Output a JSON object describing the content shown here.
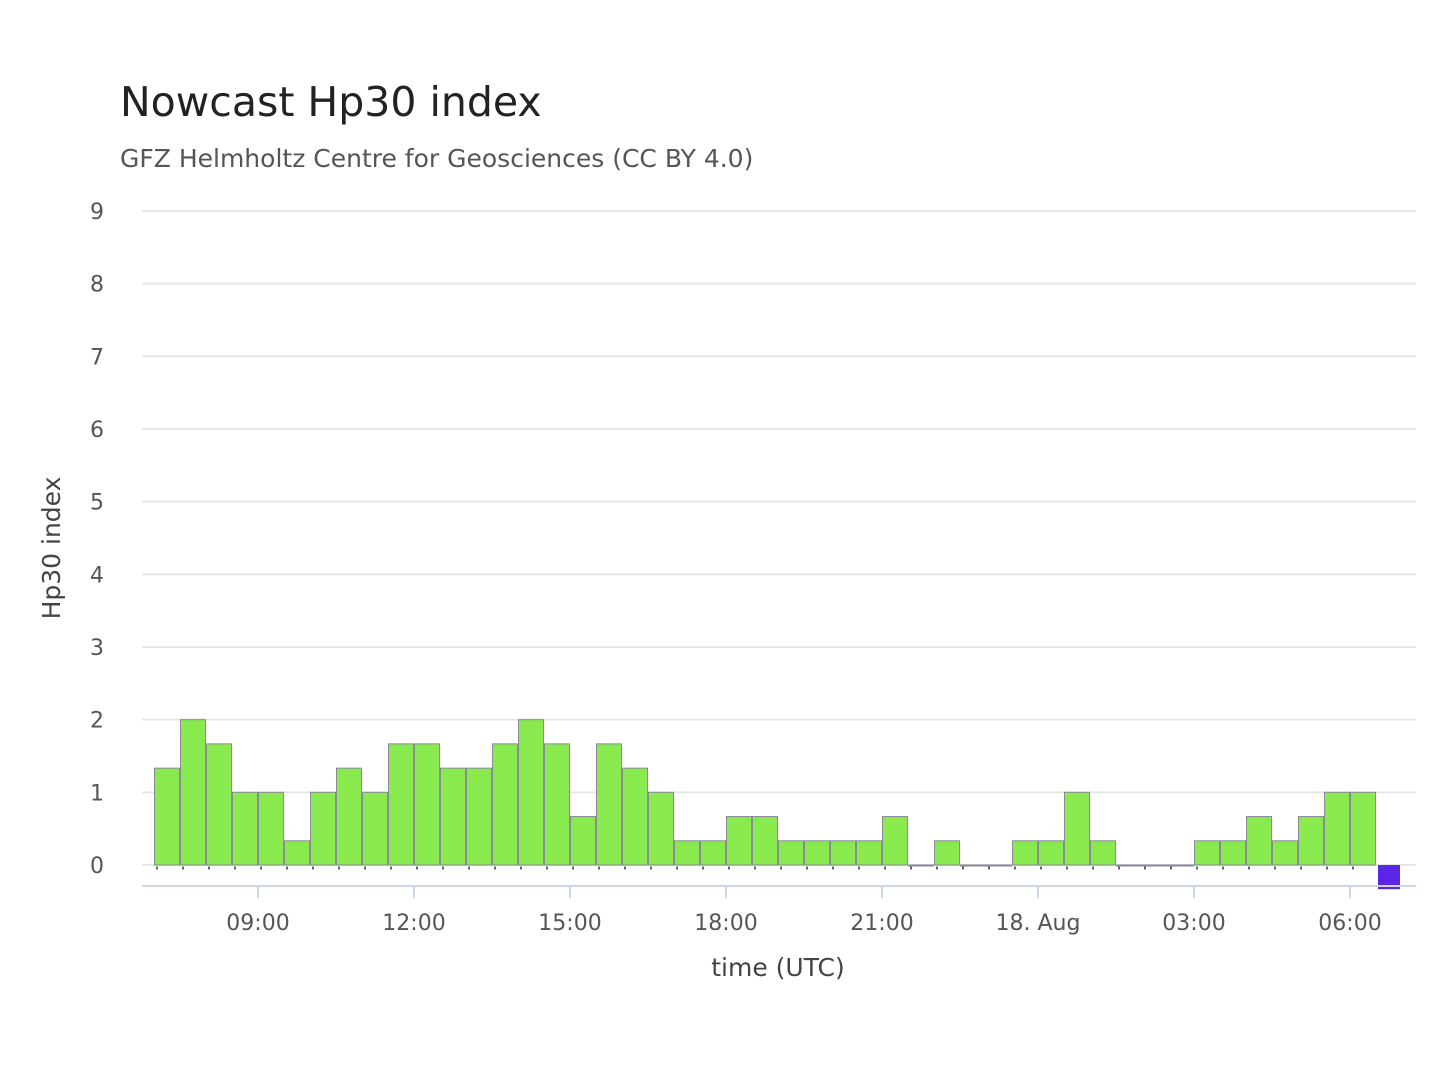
{
  "chart_data": {
    "type": "bar",
    "title": "Nowcast Hp30 index",
    "subtitle": "GFZ Helmholtz Centre for Geosciences (CC BY 4.0)",
    "xlabel": "time (UTC)",
    "ylabel": "Hp30 index",
    "ylim": [
      0,
      9
    ],
    "yticks": [
      "0",
      "1",
      "2",
      "3",
      "4",
      "5",
      "6",
      "7",
      "8",
      "9"
    ],
    "grid": true,
    "x_start": "2025-08-17 07:00",
    "bar_width_hours": 0.5,
    "xticks": [
      {
        "label": "09:00",
        "hours": 2
      },
      {
        "label": "12:00",
        "hours": 5
      },
      {
        "label": "15:00",
        "hours": 8
      },
      {
        "label": "18:00",
        "hours": 11
      },
      {
        "label": "21:00",
        "hours": 14
      },
      {
        "label": "18. Aug",
        "hours": 17
      },
      {
        "label": "03:00",
        "hours": 20
      },
      {
        "label": "06:00",
        "hours": 23
      }
    ],
    "colors": {
      "final": "#88ea4c",
      "current": "#5a26e6",
      "grid": "#e6e6e6",
      "axis": "#ccd6eb"
    },
    "series": [
      {
        "values": [
          1.333,
          2,
          1.667,
          1,
          1,
          0.333,
          1,
          1.333,
          1,
          1.667,
          1.667,
          1.333,
          1.333,
          1.667,
          2,
          1.667,
          0.667,
          1.667,
          1.333,
          1,
          0.333,
          0.333,
          0.667,
          0.667,
          0.333,
          0.333,
          0.333,
          0.333,
          0.667,
          0,
          0.333,
          0,
          0,
          0.333,
          0.333,
          1,
          0.333,
          0,
          0,
          0,
          0.333,
          0.333,
          0.667,
          0.333,
          0.667,
          1,
          1
        ],
        "color": "#88ea4c"
      },
      {
        "values": [
          -0.333
        ],
        "start_index": 47,
        "color": "#5a26e6"
      }
    ]
  }
}
